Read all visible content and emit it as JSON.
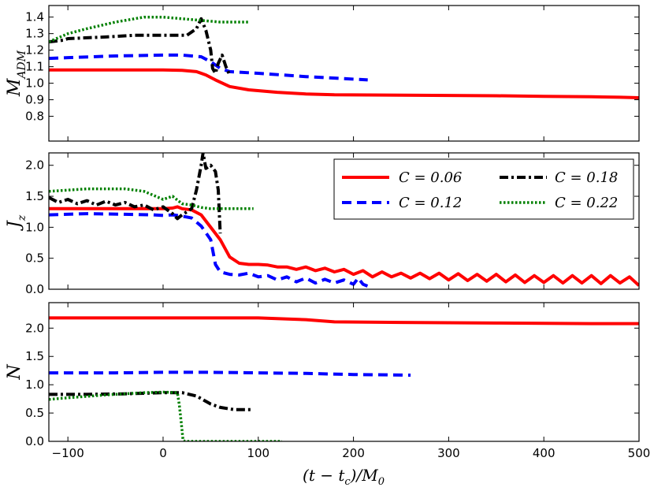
{
  "chart_data": {
    "type": "line",
    "xlabel": "(t − t_c)/M_0",
    "xlim": [
      -120,
      500
    ],
    "xticks": [
      -100,
      0,
      100,
      200,
      300,
      400,
      500
    ],
    "xtick_labels": [
      "−100",
      "0",
      "100",
      "200",
      "300",
      "400",
      "500"
    ],
    "series_styles": [
      {
        "name": "C = 0.06",
        "color": "#ff0000",
        "dash": "solid"
      },
      {
        "name": "C = 0.12",
        "color": "#0000ff",
        "dash": "dashed"
      },
      {
        "name": "C = 0.18",
        "color": "#000000",
        "dash": "dashdot"
      },
      {
        "name": "C = 0.22",
        "color": "#008000",
        "dash": "dotted"
      }
    ],
    "legend": {
      "placement": "top-right of middle panel",
      "labels": [
        "C = 0.06",
        "C = 0.12",
        "C = 0.18",
        "C = 0.22"
      ]
    },
    "panels": [
      {
        "id": "madm",
        "ylabel": "M_ADM",
        "ylim": [
          0.65,
          1.47
        ],
        "yticks": [
          0.8,
          0.9,
          1.0,
          1.1,
          1.2,
          1.3,
          1.4
        ],
        "ytick_labels": [
          "0.8",
          "0.9",
          "1.0",
          "1.1",
          "1.2",
          "1.3",
          "1.4"
        ],
        "series": [
          {
            "name": "C = 0.06",
            "x": [
              -120,
              -100,
              -50,
              0,
              20,
              35,
              45,
              55,
              70,
              90,
              120,
              150,
              180,
              250,
              300,
              350,
              400,
              450,
              480,
              500
            ],
            "y": [
              1.08,
              1.08,
              1.08,
              1.08,
              1.078,
              1.07,
              1.05,
              1.02,
              0.98,
              0.96,
              0.945,
              0.935,
              0.93,
              0.928,
              0.926,
              0.924,
              0.921,
              0.918,
              0.915,
              0.912
            ]
          },
          {
            "name": "C = 0.12",
            "x": [
              -120,
              -100,
              -50,
              0,
              20,
              40,
              50,
              60,
              70,
              100,
              150,
              215
            ],
            "y": [
              1.15,
              1.155,
              1.165,
              1.17,
              1.17,
              1.16,
              1.13,
              1.09,
              1.07,
              1.06,
              1.04,
              1.02
            ]
          },
          {
            "name": "C = 0.18",
            "x": [
              -120,
              -105,
              -100,
              -60,
              -30,
              0,
              15,
              25,
              35,
              40,
              45,
              50,
              52,
              55,
              58,
              62,
              66,
              70
            ],
            "y": [
              1.25,
              1.26,
              1.27,
              1.28,
              1.29,
              1.29,
              1.29,
              1.29,
              1.33,
              1.39,
              1.32,
              1.2,
              1.09,
              1.06,
              1.12,
              1.17,
              1.1,
              1.05
            ]
          },
          {
            "name": "C = 0.22",
            "x": [
              -120,
              -100,
              -80,
              -50,
              -20,
              0,
              20,
              40,
              60,
              80,
              90
            ],
            "y": [
              1.25,
              1.3,
              1.33,
              1.37,
              1.4,
              1.4,
              1.39,
              1.38,
              1.37,
              1.37,
              1.37
            ]
          }
        ]
      },
      {
        "id": "jz",
        "ylabel": "J_z",
        "ylim": [
          0.0,
          2.2
        ],
        "yticks": [
          0.0,
          0.5,
          1.0,
          1.5,
          2.0
        ],
        "ytick_labels": [
          "0.0",
          "0.5",
          "1.0",
          "1.5",
          "2.0"
        ],
        "series": [
          {
            "name": "C = 0.06",
            "x": [
              -120,
              -60,
              -20,
              0,
              10,
              15,
              20,
              30,
              40,
              50,
              60,
              70,
              80,
              90,
              100,
              110,
              120,
              130,
              140,
              150,
              160,
              170,
              180,
              190,
              200,
              210,
              220,
              230,
              240,
              250,
              260,
              270,
              280,
              290,
              300,
              310,
              320,
              330,
              340,
              350,
              360,
              370,
              380,
              390,
              400,
              410,
              420,
              430,
              440,
              450,
              460,
              470,
              480,
              490,
              500
            ],
            "y": [
              1.3,
              1.3,
              1.3,
              1.3,
              1.31,
              1.33,
              1.3,
              1.28,
              1.2,
              1.0,
              0.8,
              0.52,
              0.42,
              0.4,
              0.4,
              0.39,
              0.36,
              0.36,
              0.32,
              0.36,
              0.3,
              0.34,
              0.28,
              0.32,
              0.24,
              0.3,
              0.2,
              0.28,
              0.2,
              0.26,
              0.18,
              0.26,
              0.17,
              0.26,
              0.15,
              0.25,
              0.14,
              0.24,
              0.13,
              0.24,
              0.12,
              0.23,
              0.11,
              0.22,
              0.11,
              0.22,
              0.1,
              0.22,
              0.1,
              0.22,
              0.09,
              0.22,
              0.1,
              0.2,
              0.06
            ]
          },
          {
            "name": "C = 0.12",
            "x": [
              -120,
              -80,
              -40,
              -10,
              0,
              10,
              20,
              30,
              40,
              50,
              55,
              60,
              70,
              80,
              90,
              100,
              110,
              120,
              130,
              140,
              150,
              160,
              170,
              180,
              190,
              200,
              205,
              210,
              215
            ],
            "y": [
              1.2,
              1.22,
              1.21,
              1.2,
              1.19,
              1.2,
              1.18,
              1.15,
              1.02,
              0.8,
              0.4,
              0.28,
              0.24,
              0.23,
              0.26,
              0.2,
              0.22,
              0.15,
              0.2,
              0.12,
              0.18,
              0.1,
              0.16,
              0.1,
              0.15,
              0.08,
              0.18,
              0.08,
              0.05
            ]
          },
          {
            "name": "C = 0.18",
            "x": [
              -120,
              -110,
              -100,
              -90,
              -80,
              -70,
              -60,
              -50,
              -40,
              -30,
              -20,
              -10,
              0,
              10,
              15,
              20,
              30,
              35,
              40,
              42,
              45,
              50,
              55,
              58,
              60
            ],
            "y": [
              1.48,
              1.4,
              1.45,
              1.38,
              1.43,
              1.36,
              1.42,
              1.36,
              1.4,
              1.33,
              1.36,
              1.28,
              1.33,
              1.22,
              1.14,
              1.2,
              1.3,
              1.6,
              2.0,
              2.2,
              1.95,
              2.0,
              1.9,
              1.6,
              0.9
            ]
          },
          {
            "name": "C = 0.22",
            "x": [
              -120,
              -100,
              -80,
              -60,
              -40,
              -20,
              0,
              10,
              20,
              30,
              40,
              50,
              60,
              70,
              80,
              95
            ],
            "y": [
              1.58,
              1.6,
              1.62,
              1.62,
              1.62,
              1.58,
              1.45,
              1.5,
              1.38,
              1.36,
              1.32,
              1.3,
              1.3,
              1.3,
              1.3,
              1.3
            ]
          }
        ]
      },
      {
        "id": "n",
        "ylabel": "N",
        "ylim": [
          0.0,
          2.45
        ],
        "yticks": [
          0.0,
          0.5,
          1.0,
          1.5,
          2.0
        ],
        "ytick_labels": [
          "0.0",
          "0.5",
          "1.0",
          "1.5",
          "2.0"
        ],
        "series": [
          {
            "name": "C = 0.06",
            "x": [
              -120,
              0,
              100,
              150,
              180,
              250,
              350,
              450,
              500
            ],
            "y": [
              2.18,
              2.18,
              2.18,
              2.15,
              2.11,
              2.1,
              2.09,
              2.08,
              2.08
            ]
          },
          {
            "name": "C = 0.12",
            "x": [
              -120,
              -50,
              0,
              50,
              100,
              150,
              200,
              260
            ],
            "y": [
              1.21,
              1.21,
              1.22,
              1.22,
              1.21,
              1.2,
              1.18,
              1.17
            ]
          },
          {
            "name": "C = 0.18",
            "x": [
              -120,
              -80,
              -40,
              0,
              20,
              35,
              50,
              60,
              75,
              95
            ],
            "y": [
              0.83,
              0.83,
              0.84,
              0.86,
              0.86,
              0.8,
              0.66,
              0.6,
              0.56,
              0.56
            ]
          },
          {
            "name": "C = 0.22",
            "x": [
              -120,
              -100,
              -60,
              -20,
              0,
              15,
              17,
              19,
              21,
              23,
              40,
              80,
              125
            ],
            "y": [
              0.74,
              0.77,
              0.82,
              0.86,
              0.87,
              0.86,
              0.65,
              0.35,
              0.02,
              0.0,
              0.0,
              0.0,
              0.0
            ]
          }
        ]
      }
    ]
  }
}
